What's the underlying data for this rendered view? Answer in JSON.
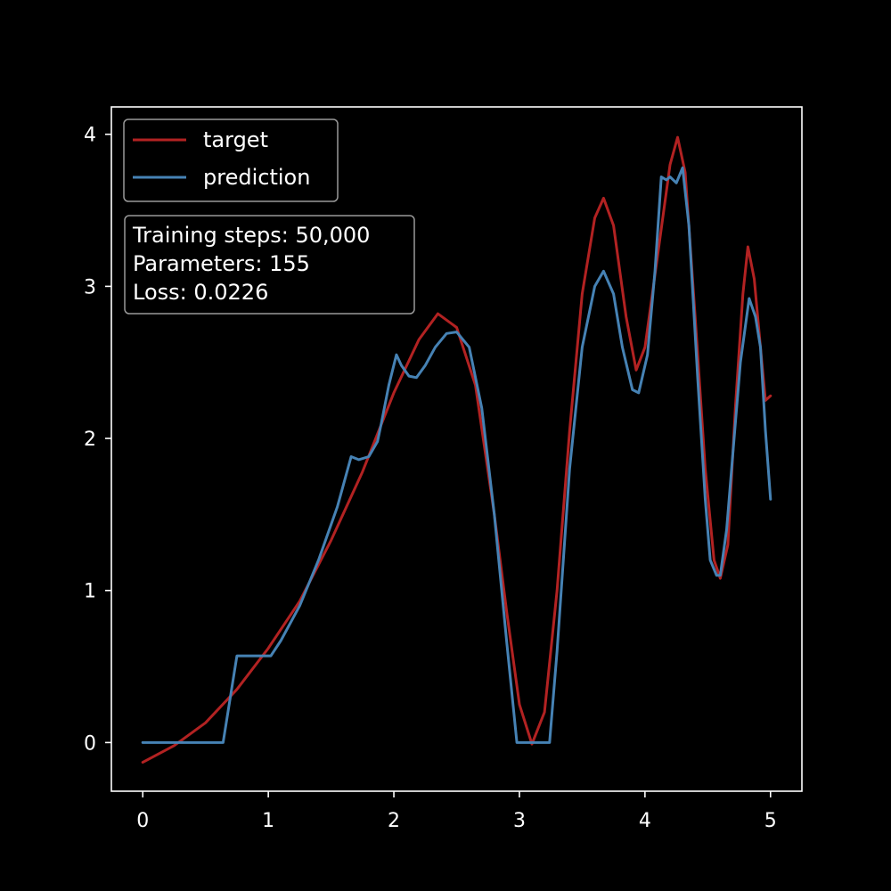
{
  "chart_data": {
    "type": "line",
    "title": "",
    "xlabel": "",
    "ylabel": "",
    "xlim": [
      -0.25,
      5.25
    ],
    "ylim": [
      -0.32,
      4.18
    ],
    "xticks": [
      "0",
      "1",
      "2",
      "3",
      "4",
      "5"
    ],
    "yticks": [
      "0",
      "1",
      "2",
      "3",
      "4"
    ],
    "grid": false,
    "legend_position": "upper-left",
    "background": "#000000",
    "series": [
      {
        "name": "target",
        "color": "#b22222",
        "points": [
          [
            0.0,
            -0.13
          ],
          [
            0.25,
            -0.02
          ],
          [
            0.5,
            0.13
          ],
          [
            0.75,
            0.35
          ],
          [
            1.0,
            0.62
          ],
          [
            1.25,
            0.93
          ],
          [
            1.5,
            1.33
          ],
          [
            1.75,
            1.78
          ],
          [
            2.0,
            2.3
          ],
          [
            2.2,
            2.65
          ],
          [
            2.35,
            2.82
          ],
          [
            2.5,
            2.73
          ],
          [
            2.65,
            2.35
          ],
          [
            2.8,
            1.5
          ],
          [
            2.9,
            0.85
          ],
          [
            3.0,
            0.25
          ],
          [
            3.1,
            -0.01
          ],
          [
            3.2,
            0.2
          ],
          [
            3.3,
            1.0
          ],
          [
            3.4,
            2.05
          ],
          [
            3.5,
            2.95
          ],
          [
            3.6,
            3.45
          ],
          [
            3.67,
            3.58
          ],
          [
            3.75,
            3.4
          ],
          [
            3.85,
            2.8
          ],
          [
            3.93,
            2.45
          ],
          [
            4.0,
            2.6
          ],
          [
            4.1,
            3.2
          ],
          [
            4.2,
            3.8
          ],
          [
            4.26,
            3.98
          ],
          [
            4.32,
            3.75
          ],
          [
            4.4,
            2.8
          ],
          [
            4.48,
            1.8
          ],
          [
            4.55,
            1.2
          ],
          [
            4.6,
            1.08
          ],
          [
            4.66,
            1.3
          ],
          [
            4.72,
            2.2
          ],
          [
            4.78,
            2.95
          ],
          [
            4.82,
            3.26
          ],
          [
            4.87,
            3.05
          ],
          [
            4.92,
            2.6
          ],
          [
            4.96,
            2.25
          ],
          [
            5.0,
            2.28
          ]
        ]
      },
      {
        "name": "prediction",
        "color": "#4682b4",
        "points": [
          [
            0.0,
            0.0
          ],
          [
            0.64,
            0.0
          ],
          [
            0.75,
            0.57
          ],
          [
            1.02,
            0.57
          ],
          [
            1.1,
            0.67
          ],
          [
            1.25,
            0.9
          ],
          [
            1.4,
            1.2
          ],
          [
            1.55,
            1.55
          ],
          [
            1.66,
            1.88
          ],
          [
            1.72,
            1.86
          ],
          [
            1.8,
            1.88
          ],
          [
            1.87,
            1.98
          ],
          [
            1.9,
            2.1
          ],
          [
            1.96,
            2.35
          ],
          [
            2.02,
            2.55
          ],
          [
            2.06,
            2.48
          ],
          [
            2.12,
            2.41
          ],
          [
            2.18,
            2.4
          ],
          [
            2.25,
            2.48
          ],
          [
            2.33,
            2.6
          ],
          [
            2.42,
            2.69
          ],
          [
            2.5,
            2.7
          ],
          [
            2.6,
            2.6
          ],
          [
            2.7,
            2.2
          ],
          [
            2.8,
            1.5
          ],
          [
            2.9,
            0.65
          ],
          [
            2.98,
            0.0
          ],
          [
            3.24,
            0.0
          ],
          [
            3.3,
            0.6
          ],
          [
            3.4,
            1.8
          ],
          [
            3.5,
            2.6
          ],
          [
            3.6,
            3.0
          ],
          [
            3.67,
            3.1
          ],
          [
            3.75,
            2.95
          ],
          [
            3.82,
            2.6
          ],
          [
            3.9,
            2.32
          ],
          [
            3.95,
            2.3
          ],
          [
            4.02,
            2.55
          ],
          [
            4.08,
            3.1
          ],
          [
            4.13,
            3.72
          ],
          [
            4.17,
            3.7
          ],
          [
            4.2,
            3.72
          ],
          [
            4.25,
            3.68
          ],
          [
            4.3,
            3.78
          ],
          [
            4.35,
            3.4
          ],
          [
            4.42,
            2.4
          ],
          [
            4.48,
            1.6
          ],
          [
            4.52,
            1.2
          ],
          [
            4.57,
            1.1
          ],
          [
            4.6,
            1.1
          ],
          [
            4.65,
            1.4
          ],
          [
            4.7,
            1.9
          ],
          [
            4.76,
            2.5
          ],
          [
            4.83,
            2.92
          ],
          [
            4.88,
            2.8
          ],
          [
            4.92,
            2.6
          ],
          [
            4.96,
            2.05
          ],
          [
            5.0,
            1.6
          ]
        ]
      }
    ],
    "annotation": {
      "lines": [
        "Training steps: 50,000",
        "Parameters: 155",
        "Loss: 0.0226"
      ],
      "position": "upper-left"
    }
  }
}
